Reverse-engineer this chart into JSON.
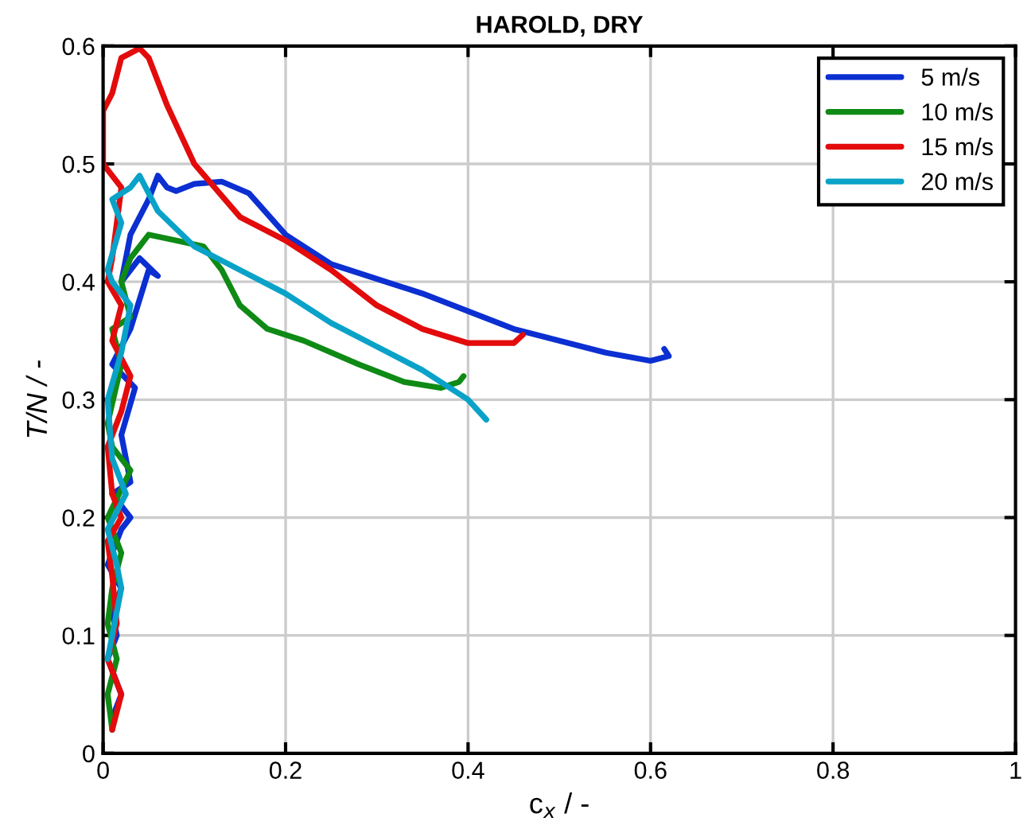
{
  "chart_data": {
    "type": "line",
    "title": "HAROLD, DRY",
    "xlabel": "c$_{x}$ / -",
    "ylabel": "T/N / -",
    "xlim": [
      0,
      1
    ],
    "ylim": [
      0,
      0.6
    ],
    "xticks": [
      0,
      0.2,
      0.4,
      0.6,
      0.8,
      1
    ],
    "yticks": [
      0,
      0.1,
      0.2,
      0.3,
      0.4,
      0.5,
      0.6
    ],
    "grid": true,
    "legend": "top right",
    "marker": "none",
    "line_style": "solid",
    "series": [
      {
        "name": "5 m/s",
        "color": "#0b2fd1",
        "x": [
          0.01,
          0.02,
          0.005,
          0.015,
          0.01,
          0.02,
          0.005,
          0.02,
          0.03,
          0.01,
          0.03,
          0.02,
          0.035,
          0.01,
          0.03,
          0.05,
          0.06,
          0.04,
          0.02,
          0.03,
          0.05,
          0.06,
          0.07,
          0.08,
          0.1,
          0.13,
          0.16,
          0.2,
          0.25,
          0.35,
          0.45,
          0.55,
          0.6,
          0.62,
          0.615
        ],
        "values": [
          0.03,
          0.05,
          0.08,
          0.1,
          0.12,
          0.14,
          0.16,
          0.19,
          0.2,
          0.22,
          0.23,
          0.27,
          0.31,
          0.33,
          0.36,
          0.41,
          0.405,
          0.42,
          0.4,
          0.44,
          0.47,
          0.49,
          0.48,
          0.477,
          0.483,
          0.485,
          0.475,
          0.44,
          0.415,
          0.39,
          0.36,
          0.34,
          0.333,
          0.337,
          0.343
        ]
      },
      {
        "name": "10 m/s",
        "color": "#0f8a15",
        "x": [
          0.01,
          0.005,
          0.015,
          0.005,
          0.01,
          0.02,
          0.005,
          0.03,
          0.01,
          0.005,
          0.02,
          0.01,
          0.03,
          0.02,
          0.03,
          0.05,
          0.08,
          0.11,
          0.13,
          0.15,
          0.18,
          0.22,
          0.28,
          0.33,
          0.37,
          0.39,
          0.395
        ],
        "values": [
          0.02,
          0.05,
          0.08,
          0.11,
          0.14,
          0.17,
          0.2,
          0.24,
          0.26,
          0.28,
          0.33,
          0.36,
          0.37,
          0.4,
          0.42,
          0.44,
          0.435,
          0.43,
          0.41,
          0.38,
          0.36,
          0.35,
          0.33,
          0.315,
          0.31,
          0.315,
          0.32
        ]
      },
      {
        "name": "15 m/s",
        "color": "#e30b0b",
        "x": [
          0.01,
          0.02,
          0.005,
          0.015,
          0.01,
          0.005,
          0.02,
          0.01,
          0.005,
          0.02,
          0.03,
          0.01,
          0.02,
          0.005,
          0.01,
          0.02,
          0.0,
          0.0,
          0.01,
          0.02,
          0.04,
          0.05,
          0.07,
          0.1,
          0.15,
          0.2,
          0.25,
          0.3,
          0.35,
          0.4,
          0.45,
          0.46
        ],
        "values": [
          0.02,
          0.05,
          0.08,
          0.11,
          0.15,
          0.18,
          0.2,
          0.22,
          0.26,
          0.29,
          0.32,
          0.35,
          0.38,
          0.4,
          0.42,
          0.48,
          0.5,
          0.545,
          0.56,
          0.59,
          0.598,
          0.59,
          0.55,
          0.5,
          0.455,
          0.435,
          0.41,
          0.38,
          0.36,
          0.348,
          0.348,
          0.355
        ]
      },
      {
        "name": "20 m/s",
        "color": "#0aa2c8",
        "x": [
          0.005,
          0.01,
          0.02,
          0.015,
          0.005,
          0.025,
          0.01,
          0.005,
          0.02,
          0.03,
          0.01,
          0.005,
          0.02,
          0.01,
          0.03,
          0.04,
          0.06,
          0.1,
          0.15,
          0.2,
          0.25,
          0.3,
          0.35,
          0.4,
          0.42
        ],
        "values": [
          0.08,
          0.1,
          0.14,
          0.16,
          0.19,
          0.22,
          0.25,
          0.3,
          0.34,
          0.38,
          0.4,
          0.41,
          0.45,
          0.47,
          0.48,
          0.49,
          0.46,
          0.43,
          0.41,
          0.39,
          0.365,
          0.345,
          0.325,
          0.3,
          0.283
        ]
      }
    ]
  }
}
